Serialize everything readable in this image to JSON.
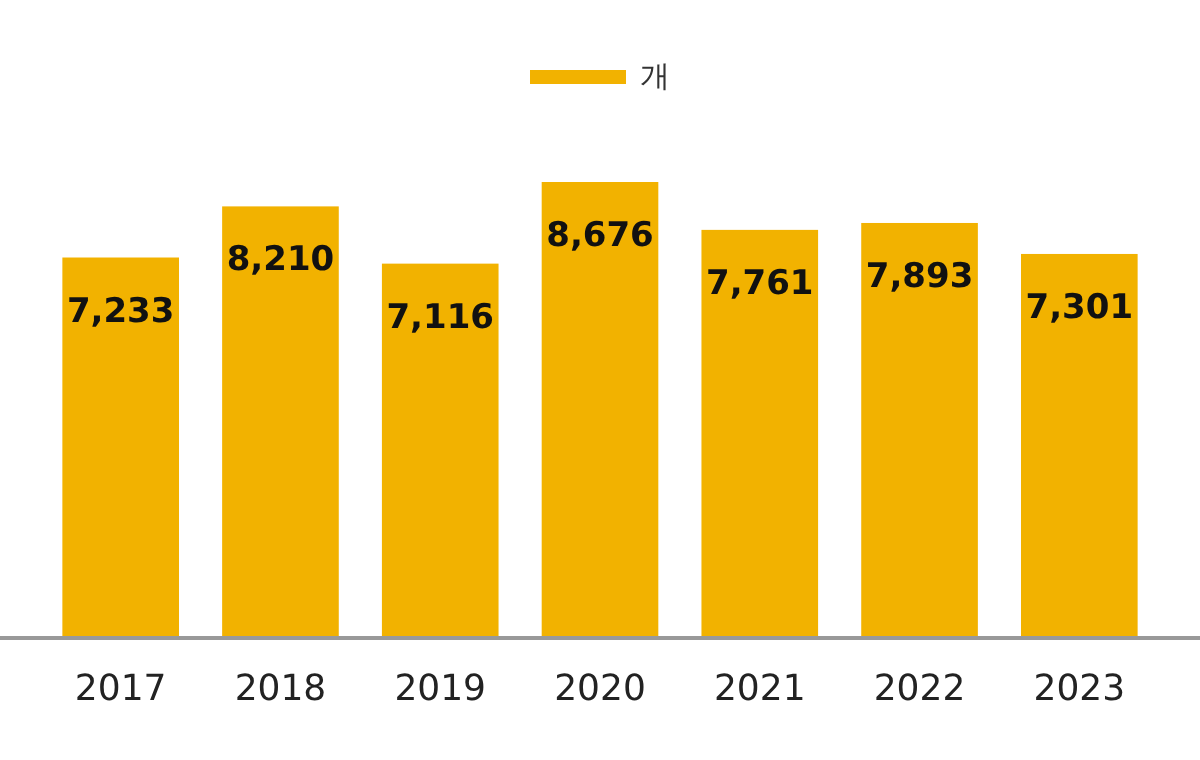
{
  "chart_data": {
    "type": "bar",
    "categories": [
      "2017",
      "2018",
      "2019",
      "2020",
      "2021",
      "2022",
      "2023"
    ],
    "series": [
      {
        "name": "개",
        "color": "#f2b200",
        "values": [
          7233,
          8210,
          7116,
          8676,
          7761,
          7893,
          7301
        ],
        "value_labels": [
          "7,233",
          "8,210",
          "7,116",
          "8,676",
          "7,761",
          "7,893",
          "7,301"
        ]
      }
    ],
    "legend": "top",
    "tick_labels": "x"
  }
}
